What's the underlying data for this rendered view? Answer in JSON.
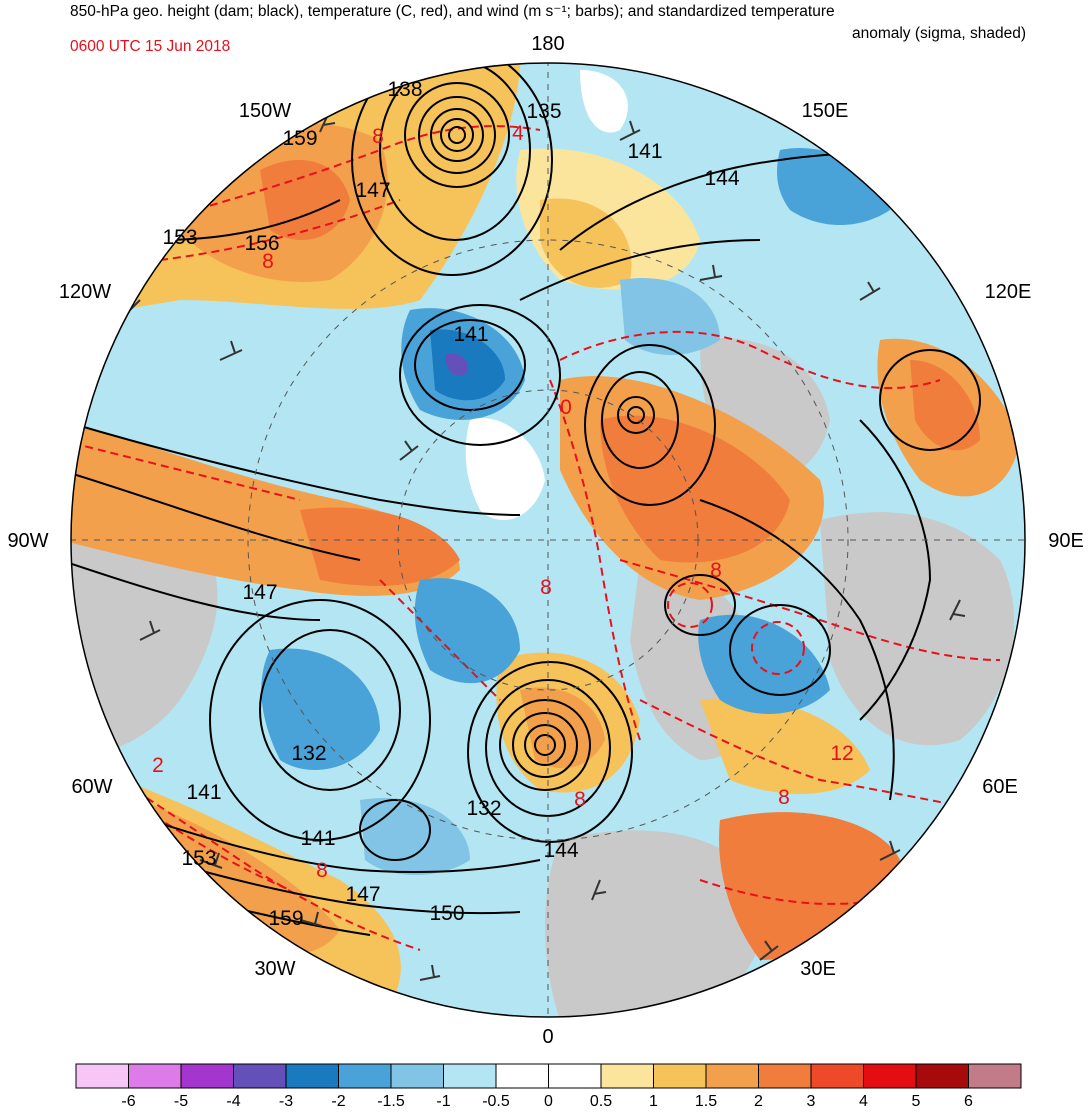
{
  "title": {
    "line1": "850-hPa geo. height (dam; black), temperature (C, red), and wind (m s⁻¹; barbs); and standardized temperature",
    "line2": "anomaly (sigma, shaded)",
    "valid_time": "0600 UTC 15 Jun 2018"
  },
  "longitude_labels": [
    "180",
    "150E",
    "120E",
    "90E",
    "60E",
    "30E",
    "0",
    "30W",
    "60W",
    "90W",
    "120W",
    "150W"
  ],
  "height_labels": [
    "138",
    "135",
    "159",
    "147",
    "141",
    "144",
    "153",
    "156",
    "141",
    "147",
    "132",
    "141",
    "141",
    "153",
    "147",
    "159",
    "150",
    "132",
    "144"
  ],
  "temperature_labels": [
    "8",
    "4",
    "8",
    "0",
    "8",
    "8",
    "12",
    "8",
    "8",
    "2",
    "8"
  ],
  "colorbar": {
    "colors": [
      "#f7c6f7",
      "#dd7be8",
      "#a535cf",
      "#6350b8",
      "#1a7ac0",
      "#4aa3d8",
      "#82c4e5",
      "#b3e6f2",
      "#ffffff",
      "#ffffff",
      "#fbe59d",
      "#f6c25a",
      "#f3a04d",
      "#f07d3c",
      "#ee4a2a",
      "#e40e12",
      "#a70a0a",
      "#c27b88"
    ],
    "tick_labels": [
      "-6",
      "-5",
      "-4",
      "-3",
      "-2",
      "-1.5",
      "-1",
      "-0.5",
      "0",
      "0.5",
      "1",
      "1.5",
      "2",
      "3",
      "4",
      "5",
      "6"
    ]
  }
}
